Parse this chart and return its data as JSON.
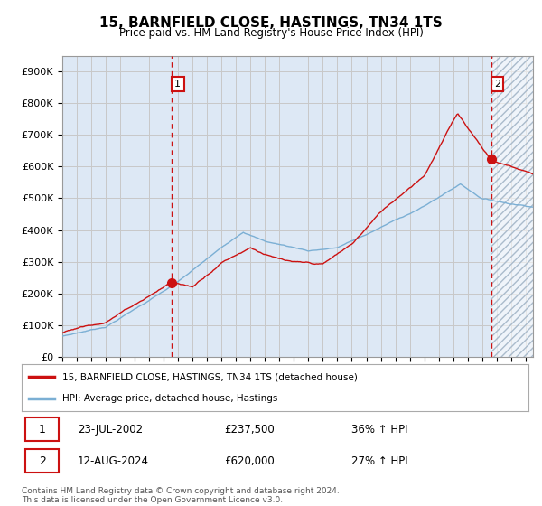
{
  "title": "15, BARNFIELD CLOSE, HASTINGS, TN34 1TS",
  "subtitle": "Price paid vs. HM Land Registry's House Price Index (HPI)",
  "hpi_label": "HPI: Average price, detached house, Hastings",
  "property_label": "15, BARNFIELD CLOSE, HASTINGS, TN34 1TS (detached house)",
  "sale1_date": "23-JUL-2002",
  "sale1_price": 237500,
  "sale1_pct": "36% ↑ HPI",
  "sale2_date": "12-AUG-2024",
  "sale2_price": 620000,
  "sale2_pct": "27% ↑ HPI",
  "sale1_x": 2002.55,
  "sale1_y": 237500,
  "sale2_x": 2024.62,
  "sale2_y": 620000,
  "ylim": [
    0,
    950000
  ],
  "xlim_left": 1995.0,
  "xlim_right": 2027.5,
  "footer": "Contains HM Land Registry data © Crown copyright and database right 2024.\nThis data is licensed under the Open Government Licence v3.0.",
  "grid_color": "#c8c8c8",
  "hpi_color": "#7bafd4",
  "property_color": "#cc1111",
  "vline_color": "#cc1111",
  "background_color": "#ffffff",
  "plot_bg_color": "#dde8f5",
  "hatch_color": "#c8d4e8",
  "yticks": [
    0,
    100000,
    200000,
    300000,
    400000,
    500000,
    600000,
    700000,
    800000,
    900000
  ],
  "ytick_labels": [
    "£0",
    "£100K",
    "£200K",
    "£300K",
    "£400K",
    "£500K",
    "£600K",
    "£700K",
    "£800K",
    "£900K"
  ],
  "xticks": [
    1995,
    1996,
    1997,
    1998,
    1999,
    2000,
    2001,
    2002,
    2003,
    2004,
    2005,
    2006,
    2007,
    2008,
    2009,
    2010,
    2011,
    2012,
    2013,
    2014,
    2015,
    2016,
    2017,
    2018,
    2019,
    2020,
    2021,
    2022,
    2023,
    2024,
    2025,
    2026,
    2027
  ]
}
